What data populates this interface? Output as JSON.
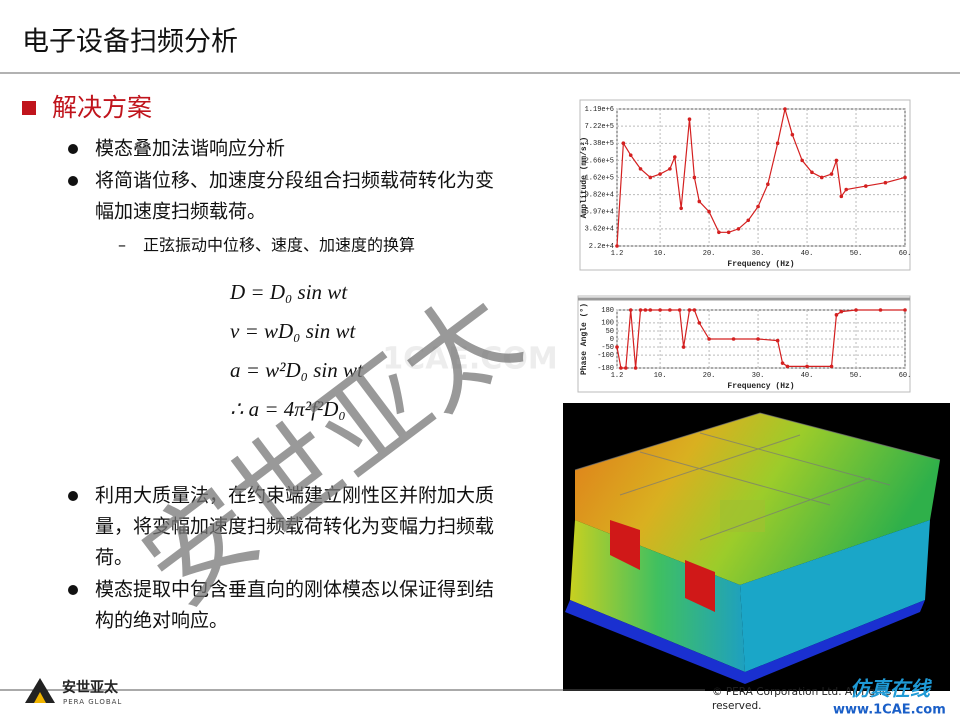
{
  "header": {
    "title": "电子设备扫频分析"
  },
  "section": {
    "heading": "解决方案"
  },
  "bullets_top": [
    {
      "lines": [
        "模态叠加法谐响应分析"
      ]
    },
    {
      "lines": [
        "将简谐位移、加速度分段组合扫频载荷转化为变",
        "幅加速度扫频载荷。"
      ]
    }
  ],
  "sub_bullet": "正弦振动中位移、速度、加速度的换算",
  "equations": [
    "D = D₀ sin wt",
    "v = wD₀ sin wt",
    "a = w²D₀ sin wt",
    "∴ a = 4π²f²D₀"
  ],
  "bullets_bottom": [
    {
      "lines": [
        "利用大质量法，在约束端建立刚性区并附加大质",
        "量，将变幅加速度扫频载荷转化为变幅力扫频载",
        "荷。"
      ]
    },
    {
      "lines": [
        "模态提取中包含垂直向的刚体模态以保证得到结",
        "构的绝对响应。"
      ]
    }
  ],
  "figures": {
    "amplitude": {
      "type": "line",
      "x_label": "Frequency (Hz)",
      "y_label": "Amplitude (mm/s²)",
      "color": "#d42020",
      "log_y": true,
      "grid": true,
      "x": [
        1.2,
        2.5,
        4,
        6,
        8,
        10,
        12,
        13,
        14.3,
        16,
        17,
        18,
        20,
        22,
        24,
        26,
        28,
        30,
        32,
        34,
        35.5,
        37,
        39,
        41,
        43,
        45,
        46,
        47,
        48,
        52,
        56,
        60
      ],
      "values": [
        22000,
        439000,
        310000,
        208000,
        162000,
        179000,
        208000,
        294000,
        66000,
        884000,
        162000,
        80500,
        59700,
        32800,
        32800,
        36200,
        46500,
        69300,
        133000,
        439000,
        1190000,
        563000,
        266000,
        188000,
        162000,
        179000,
        266000,
        93500,
        114000,
        126000,
        139000,
        162000
      ],
      "xlim": [
        1.2,
        60
      ],
      "xticks": [
        1.2,
        {
          "value": 10,
          "label": "10."
        },
        {
          "value": 20,
          "label": "20."
        },
        {
          "value": 30,
          "label": "30."
        },
        {
          "value": 40,
          "label": "40."
        },
        {
          "value": 50,
          "label": "50."
        },
        {
          "value": 60,
          "label": "60."
        }
      ],
      "ylim": [
        22000,
        1190000
      ],
      "yticks": [
        {
          "value": 22000,
          "label": "2.2e+4"
        },
        {
          "value": 36200,
          "label": "3.62e+4"
        },
        {
          "value": 59700,
          "label": "5.97e+4"
        },
        {
          "value": 98200,
          "label": "9.82e+4"
        },
        {
          "value": 162000,
          "label": "1.62e+5"
        },
        {
          "value": 266000,
          "label": "2.66e+5"
        },
        {
          "value": 438000,
          "label": "4.38e+5"
        },
        {
          "value": 722000,
          "label": "7.22e+5"
        },
        {
          "value": 1190000,
          "label": "1.19e+6"
        }
      ]
    },
    "phase": {
      "type": "line",
      "x_label": "Frequency (Hz)",
      "y_label": "Phase Angle (°)",
      "color": "#d42020",
      "log_y": false,
      "grid": true,
      "x": [
        1.2,
        2,
        3,
        4,
        5,
        6,
        7,
        8,
        10,
        12,
        14,
        14.8,
        16,
        17,
        18,
        20,
        25,
        30,
        34,
        35,
        36,
        40,
        45,
        46,
        47,
        50,
        55,
        60
      ],
      "values": [
        -50,
        -180,
        -180,
        180,
        -180,
        180,
        180,
        180,
        180,
        180,
        180,
        -50,
        180,
        180,
        100,
        0,
        0,
        0,
        -10,
        -150,
        -170,
        -170,
        -170,
        150,
        170,
        180,
        180,
        180
      ],
      "xlim": [
        1.2,
        60
      ],
      "xticks": [
        1.2,
        {
          "value": 10,
          "label": "10."
        },
        {
          "value": 20,
          "label": "20."
        },
        {
          "value": 30,
          "label": "30."
        },
        {
          "value": 40,
          "label": "40."
        },
        {
          "value": 50,
          "label": "50."
        },
        {
          "value": 60,
          "label": "60."
        }
      ],
      "ylim": [
        -180,
        180
      ],
      "yticks": [
        180,
        100,
        50,
        0,
        -50,
        -100,
        -180
      ]
    }
  },
  "watermarks": {
    "main": "安世亚太",
    "site": "1CAE.COM"
  },
  "footer": {
    "logo": "安世亚太",
    "logo_sub": "PERA GLOBAL",
    "copyright": [
      "© PERA Corporation Ltd. All rights",
      "reserved."
    ],
    "brand": "仿真在线",
    "url": "www.1CAE.com"
  }
}
